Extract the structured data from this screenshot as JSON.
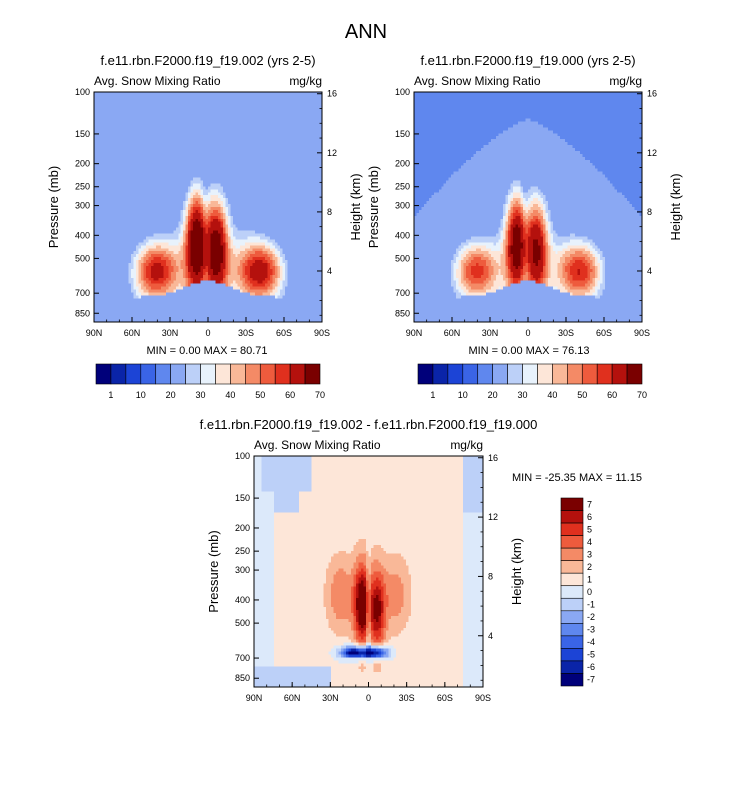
{
  "page_title": "ANN",
  "chart_data": [
    {
      "type": "heatmap",
      "title": "f.e11.rbn.F2000.f19_f19.002 (yrs 2-5)",
      "subtitle_left": "Avg. Snow Mixing Ratio",
      "units": "mg/kg",
      "xlabel": "",
      "ylabel": "Pressure (mb)",
      "ylabel_right": "Height (km)",
      "x_ticks": [
        "90N",
        "60N",
        "30N",
        "0",
        "30S",
        "60S",
        "90S"
      ],
      "y_ticks": [
        "100",
        "150",
        "200",
        "250",
        "300",
        "400",
        "500",
        "700",
        "850"
      ],
      "y_ticks_right": [
        "16",
        "12",
        "8",
        "4"
      ],
      "x_range": [
        90,
        -90
      ],
      "y_range_mb": [
        100,
        925
      ],
      "stats": "MIN =   0.00  MAX = 80.71",
      "field": {
        "max": 80.71
      },
      "colorbar": {
        "labels": [
          "1",
          "10",
          "20",
          "30",
          "40",
          "50",
          "60",
          "70"
        ],
        "colors": [
          "#00007a",
          "#0a24a8",
          "#1c44d6",
          "#3a64e6",
          "#5f87ee",
          "#8aa8f3",
          "#bcd0f8",
          "#e8f2fc",
          "#fde6d8",
          "#f9b898",
          "#f48a66",
          "#ee5b3d",
          "#e0301e",
          "#b4110d",
          "#7a0000"
        ]
      }
    },
    {
      "type": "heatmap",
      "title": "f.e11.rbn.F2000.f19_f19.000 (yrs 2-5)",
      "subtitle_left": "Avg. Snow Mixing Ratio",
      "units": "mg/kg",
      "xlabel": "",
      "ylabel": "Pressure (mb)",
      "ylabel_right": "Height (km)",
      "x_ticks": [
        "90N",
        "60N",
        "30N",
        "0",
        "30S",
        "60S",
        "90S"
      ],
      "y_ticks": [
        "100",
        "150",
        "200",
        "250",
        "300",
        "400",
        "500",
        "700",
        "850"
      ],
      "y_ticks_right": [
        "16",
        "12",
        "8",
        "4"
      ],
      "x_range": [
        90,
        -90
      ],
      "y_range_mb": [
        100,
        925
      ],
      "stats": "MIN =   0.00  MAX = 76.13",
      "field": {
        "max": 76.13
      },
      "colorbar": {
        "labels": [
          "1",
          "10",
          "20",
          "30",
          "40",
          "50",
          "60",
          "70"
        ],
        "colors": [
          "#00007a",
          "#0a24a8",
          "#1c44d6",
          "#3a64e6",
          "#5f87ee",
          "#8aa8f3",
          "#bcd0f8",
          "#e8f2fc",
          "#fde6d8",
          "#f9b898",
          "#f48a66",
          "#ee5b3d",
          "#e0301e",
          "#b4110d",
          "#7a0000"
        ]
      }
    },
    {
      "type": "heatmap",
      "title": "f.e11.rbn.F2000.f19_f19.002 - f.e11.rbn.F2000.f19_f19.000",
      "subtitle_left": "Avg. Snow Mixing Ratio",
      "units": "mg/kg",
      "xlabel": "",
      "ylabel": "Pressure (mb)",
      "ylabel_right": "Height (km)",
      "x_ticks": [
        "90N",
        "60N",
        "30N",
        "0",
        "30S",
        "60S",
        "90S"
      ],
      "y_ticks": [
        "100",
        "150",
        "200",
        "250",
        "300",
        "400",
        "500",
        "700",
        "850"
      ],
      "y_ticks_right": [
        "16",
        "12",
        "8",
        "4"
      ],
      "x_range": [
        90,
        -90
      ],
      "y_range_mb": [
        100,
        925
      ],
      "stats": "MIN = -25.35  MAX =  11.15",
      "field": {
        "min": -25.35,
        "max": 11.15
      },
      "colorbar": {
        "labels": [
          "7",
          "6",
          "5",
          "4",
          "3",
          "2",
          "1",
          "0",
          "-1",
          "-2",
          "-3",
          "-4",
          "-5",
          "-6",
          "-7"
        ],
        "colors": [
          "#7a0000",
          "#b4110d",
          "#e0301e",
          "#ee5b3d",
          "#f48a66",
          "#f9b898",
          "#fde6d8",
          "#dce9fa",
          "#bcd0f8",
          "#8aa8f3",
          "#5f87ee",
          "#3a64e6",
          "#1c44d6",
          "#0a24a8",
          "#00007a"
        ]
      }
    }
  ]
}
